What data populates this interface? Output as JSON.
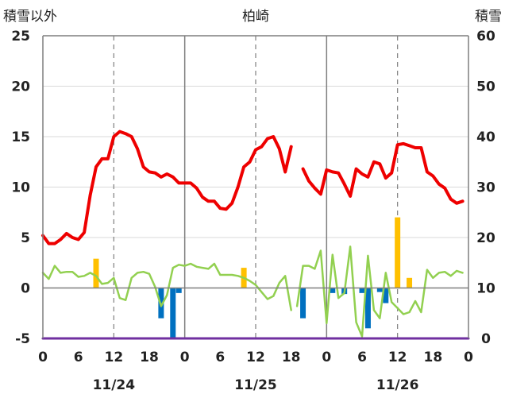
{
  "chart_data": {
    "type": "line",
    "title": "柏崎",
    "left_axis_label": "積雪以外",
    "right_axis_label": "積雪",
    "left_ylim": [
      -5,
      25
    ],
    "left_ticks": [
      "-5",
      "0",
      "5",
      "10",
      "15",
      "20",
      "25"
    ],
    "right_ylim": [
      0,
      60
    ],
    "right_ticks": [
      "0",
      "10",
      "20",
      "30",
      "40",
      "50",
      "60"
    ],
    "x_hours_range": [
      0,
      72
    ],
    "x_tick_labels": [
      "0",
      "6",
      "12",
      "18",
      "0",
      "6",
      "12",
      "18",
      "0",
      "6",
      "12",
      "18",
      "0"
    ],
    "date_labels": [
      "11/24",
      "11/25",
      "11/26"
    ],
    "grid": true,
    "colors": {
      "temperature": "#ee0000",
      "humidity_line": "#92d050",
      "precip": "#ffc000",
      "negative": "#0070c0",
      "snow": "#7030a0",
      "axis": "#7f7f7f"
    },
    "series": [
      {
        "key": "temperature",
        "values": [
          [
            0,
            5.2
          ],
          [
            1,
            4.4
          ],
          [
            2,
            4.4
          ],
          [
            3,
            4.8
          ],
          [
            4,
            5.4
          ],
          [
            5,
            5.0
          ],
          [
            6,
            4.8
          ],
          [
            7,
            5.5
          ],
          [
            8,
            9.2
          ],
          [
            9,
            12.0
          ],
          [
            10,
            12.8
          ],
          [
            11,
            12.8
          ],
          [
            12,
            15.0
          ],
          [
            13,
            15.5
          ],
          [
            14,
            15.3
          ],
          [
            15,
            15.0
          ],
          [
            16,
            13.8
          ],
          [
            17,
            12.0
          ],
          [
            18,
            11.5
          ],
          [
            19,
            11.4
          ],
          [
            20,
            11.0
          ],
          [
            21,
            11.3
          ],
          [
            22,
            11.0
          ],
          [
            23,
            10.4
          ],
          [
            24,
            10.4
          ],
          [
            25,
            10.4
          ],
          [
            26,
            9.9
          ],
          [
            27,
            9.0
          ],
          [
            28,
            8.6
          ],
          [
            29,
            8.6
          ],
          [
            30,
            7.9
          ],
          [
            31,
            7.8
          ],
          [
            32,
            8.4
          ],
          [
            33,
            10.0
          ],
          [
            34,
            12.0
          ],
          [
            35,
            12.5
          ],
          [
            36,
            13.7
          ],
          [
            37,
            14.0
          ],
          [
            38,
            14.8
          ],
          [
            39,
            15.0
          ],
          [
            40,
            13.8
          ],
          [
            41,
            11.5
          ],
          [
            42,
            14.0
          ],
          null,
          [
            44,
            11.8
          ],
          [
            45,
            10.6
          ],
          [
            46,
            9.9
          ],
          [
            47,
            9.3
          ],
          [
            48,
            11.7
          ],
          [
            49,
            11.5
          ],
          [
            50,
            11.4
          ],
          [
            51,
            10.3
          ],
          [
            52,
            9.1
          ],
          [
            53,
            11.8
          ],
          [
            54,
            11.3
          ],
          [
            55,
            11.0
          ],
          [
            56,
            12.5
          ],
          [
            57,
            12.3
          ],
          [
            58,
            10.9
          ],
          [
            59,
            11.4
          ],
          [
            60,
            14.2
          ],
          [
            61,
            14.3
          ],
          [
            62,
            14.1
          ],
          [
            63,
            13.9
          ],
          [
            64,
            13.9
          ],
          [
            65,
            11.5
          ],
          [
            66,
            11.1
          ],
          [
            67,
            10.3
          ],
          [
            68,
            9.9
          ],
          [
            69,
            8.8
          ],
          [
            70,
            8.4
          ],
          [
            71,
            8.6
          ]
        ]
      },
      {
        "key": "humidity_line",
        "values": [
          [
            0,
            1.5
          ],
          [
            1,
            0.9
          ],
          [
            2,
            2.2
          ],
          [
            3,
            1.5
          ],
          [
            4,
            1.6
          ],
          [
            5,
            1.6
          ],
          [
            6,
            1.1
          ],
          [
            7,
            1.2
          ],
          [
            8,
            1.5
          ],
          [
            9,
            1.2
          ],
          [
            10,
            0.4
          ],
          [
            11,
            0.5
          ],
          [
            12,
            1.0
          ],
          [
            13,
            -1.0
          ],
          [
            14,
            -1.2
          ],
          [
            15,
            1.0
          ],
          [
            16,
            1.5
          ],
          [
            17,
            1.6
          ],
          [
            18,
            1.4
          ],
          [
            19,
            0.1
          ],
          [
            20,
            -1.8
          ],
          [
            21,
            -0.7
          ],
          [
            22,
            2.0
          ],
          [
            23,
            2.3
          ],
          [
            24,
            2.2
          ],
          [
            25,
            2.4
          ],
          [
            26,
            2.1
          ],
          [
            27,
            2.0
          ],
          [
            28,
            1.9
          ],
          [
            29,
            2.4
          ],
          [
            30,
            1.3
          ],
          [
            31,
            1.3
          ],
          [
            32,
            1.3
          ],
          [
            33,
            1.2
          ],
          [
            34,
            1.0
          ],
          [
            35,
            0.7
          ],
          [
            36,
            0.3
          ],
          [
            37,
            -0.4
          ],
          [
            38,
            -1.1
          ],
          [
            39,
            -0.8
          ],
          [
            40,
            0.5
          ],
          [
            41,
            1.2
          ],
          [
            42,
            -2.2
          ],
          null,
          [
            43,
            -1.8
          ],
          [
            44,
            2.2
          ],
          [
            45,
            2.2
          ],
          [
            46,
            1.9
          ],
          [
            47,
            3.7
          ],
          [
            48,
            -3.5
          ],
          [
            49,
            3.3
          ],
          [
            50,
            -1.0
          ],
          [
            51,
            -0.5
          ],
          [
            52,
            4.1
          ],
          [
            53,
            -3.4
          ],
          [
            54,
            -4.8
          ],
          [
            55,
            3.2
          ],
          [
            56,
            -2.2
          ],
          [
            57,
            -3.0
          ],
          [
            58,
            1.5
          ],
          [
            59,
            -1.4
          ],
          [
            60,
            -2.0
          ],
          [
            61,
            -2.6
          ],
          [
            62,
            -2.4
          ],
          [
            63,
            -1.3
          ],
          [
            64,
            -2.4
          ],
          [
            65,
            1.8
          ],
          [
            66,
            1.0
          ],
          [
            67,
            1.5
          ],
          [
            68,
            1.6
          ],
          [
            69,
            1.2
          ],
          [
            70,
            1.7
          ],
          [
            71,
            1.5
          ]
        ]
      },
      {
        "key": "precip_bars",
        "values": [
          [
            9,
            2.9
          ],
          [
            34,
            2.0
          ],
          [
            60,
            7.0
          ],
          [
            62,
            1.0
          ]
        ]
      },
      {
        "key": "negative_bars",
        "values": [
          [
            20,
            -3.0
          ],
          [
            22,
            -5.0
          ],
          [
            23,
            -0.5
          ],
          [
            44,
            -3.0
          ],
          [
            49,
            -0.5
          ],
          [
            51,
            -0.6
          ],
          [
            54,
            -0.5
          ],
          [
            55,
            -4.0
          ],
          [
            57,
            -0.4
          ],
          [
            58,
            -1.5
          ]
        ]
      },
      {
        "key": "snow_depth",
        "values": [
          [
            0,
            0
          ],
          [
            72,
            0
          ]
        ]
      }
    ]
  }
}
